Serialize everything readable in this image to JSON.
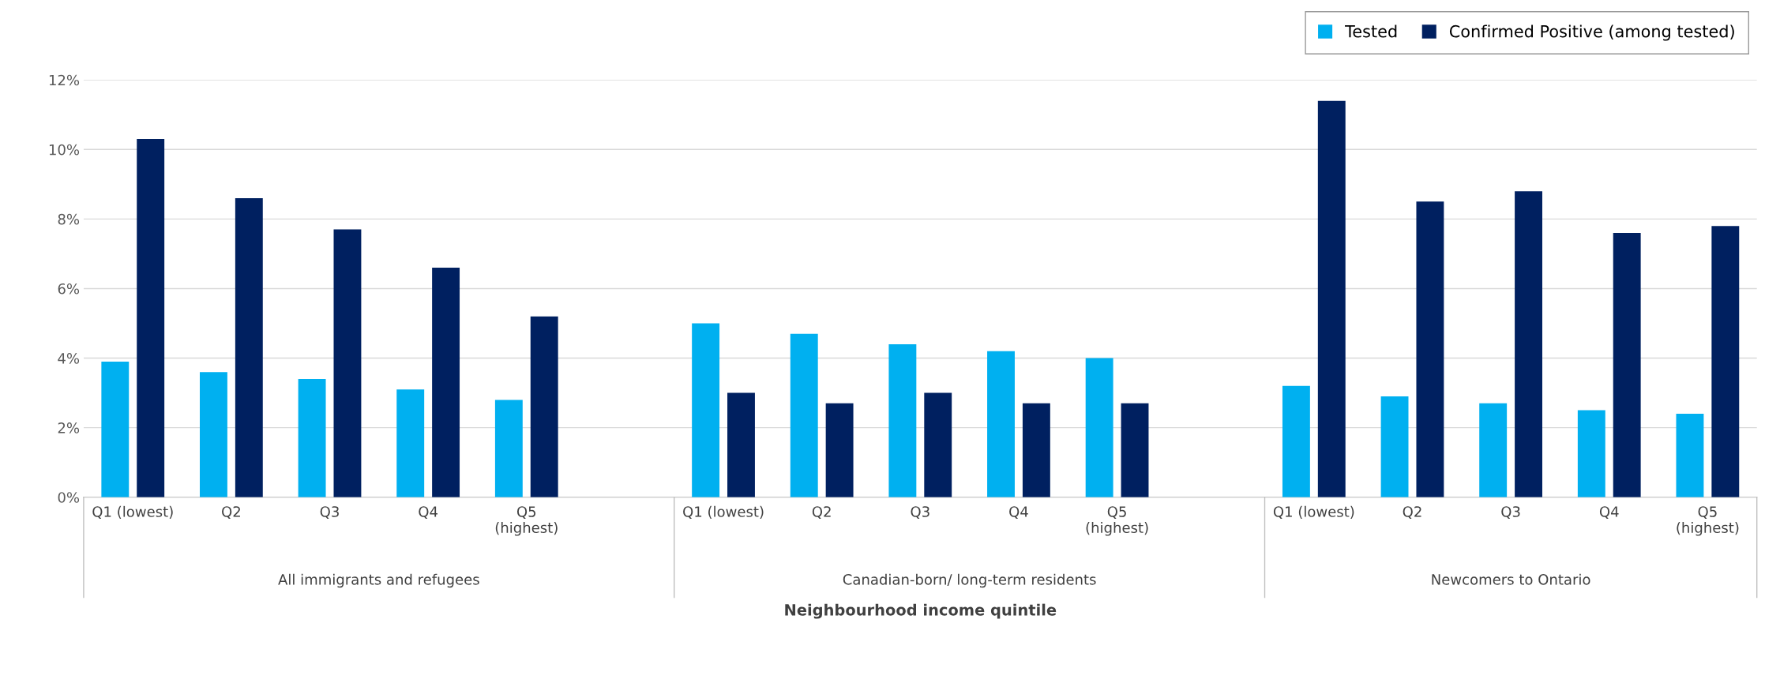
{
  "chart_data": {
    "type": "bar",
    "xlabel": "Neighbourhood income quintile",
    "categories": [
      "Q1 (lowest)",
      "Q2",
      "Q3",
      "Q4",
      "Q5\n(highest)",
      null,
      "Q1 (lowest)",
      "Q2",
      "Q3",
      "Q4",
      "Q5\n(highest)",
      null,
      "Q1 (lowest)",
      "Q2",
      "Q3",
      "Q4",
      "Q5\n(highest)"
    ],
    "series": [
      {
        "name": "Tested",
        "color": "#00b0f0",
        "values": [
          3.9,
          3.6,
          3.4,
          3.1,
          2.8,
          null,
          5.0,
          4.7,
          4.4,
          4.2,
          4.0,
          null,
          3.2,
          2.9,
          2.7,
          2.5,
          2.4
        ]
      },
      {
        "name": "Confirmed Positive (among tested)",
        "color": "#002060",
        "values": [
          10.3,
          8.6,
          7.7,
          6.6,
          5.2,
          null,
          3.0,
          2.7,
          3.0,
          2.7,
          2.7,
          null,
          11.4,
          8.5,
          8.8,
          7.6,
          7.8
        ]
      }
    ],
    "annotations": [
      "All immigrants and refugees",
      "Canadian-born/ long-term residents",
      "Newcomers to Ontario"
    ],
    "ylim": [
      0,
      12
    ],
    "yticks": [
      {
        "value": 0,
        "label": "0%"
      },
      {
        "value": 2,
        "label": "2%"
      },
      {
        "value": 4,
        "label": "4%"
      },
      {
        "value": 6,
        "label": "6%"
      },
      {
        "value": 8,
        "label": "8%"
      },
      {
        "value": 10,
        "label": "10%"
      },
      {
        "value": 12,
        "label": "12%"
      }
    ],
    "grid": "y",
    "legend": "top right"
  }
}
